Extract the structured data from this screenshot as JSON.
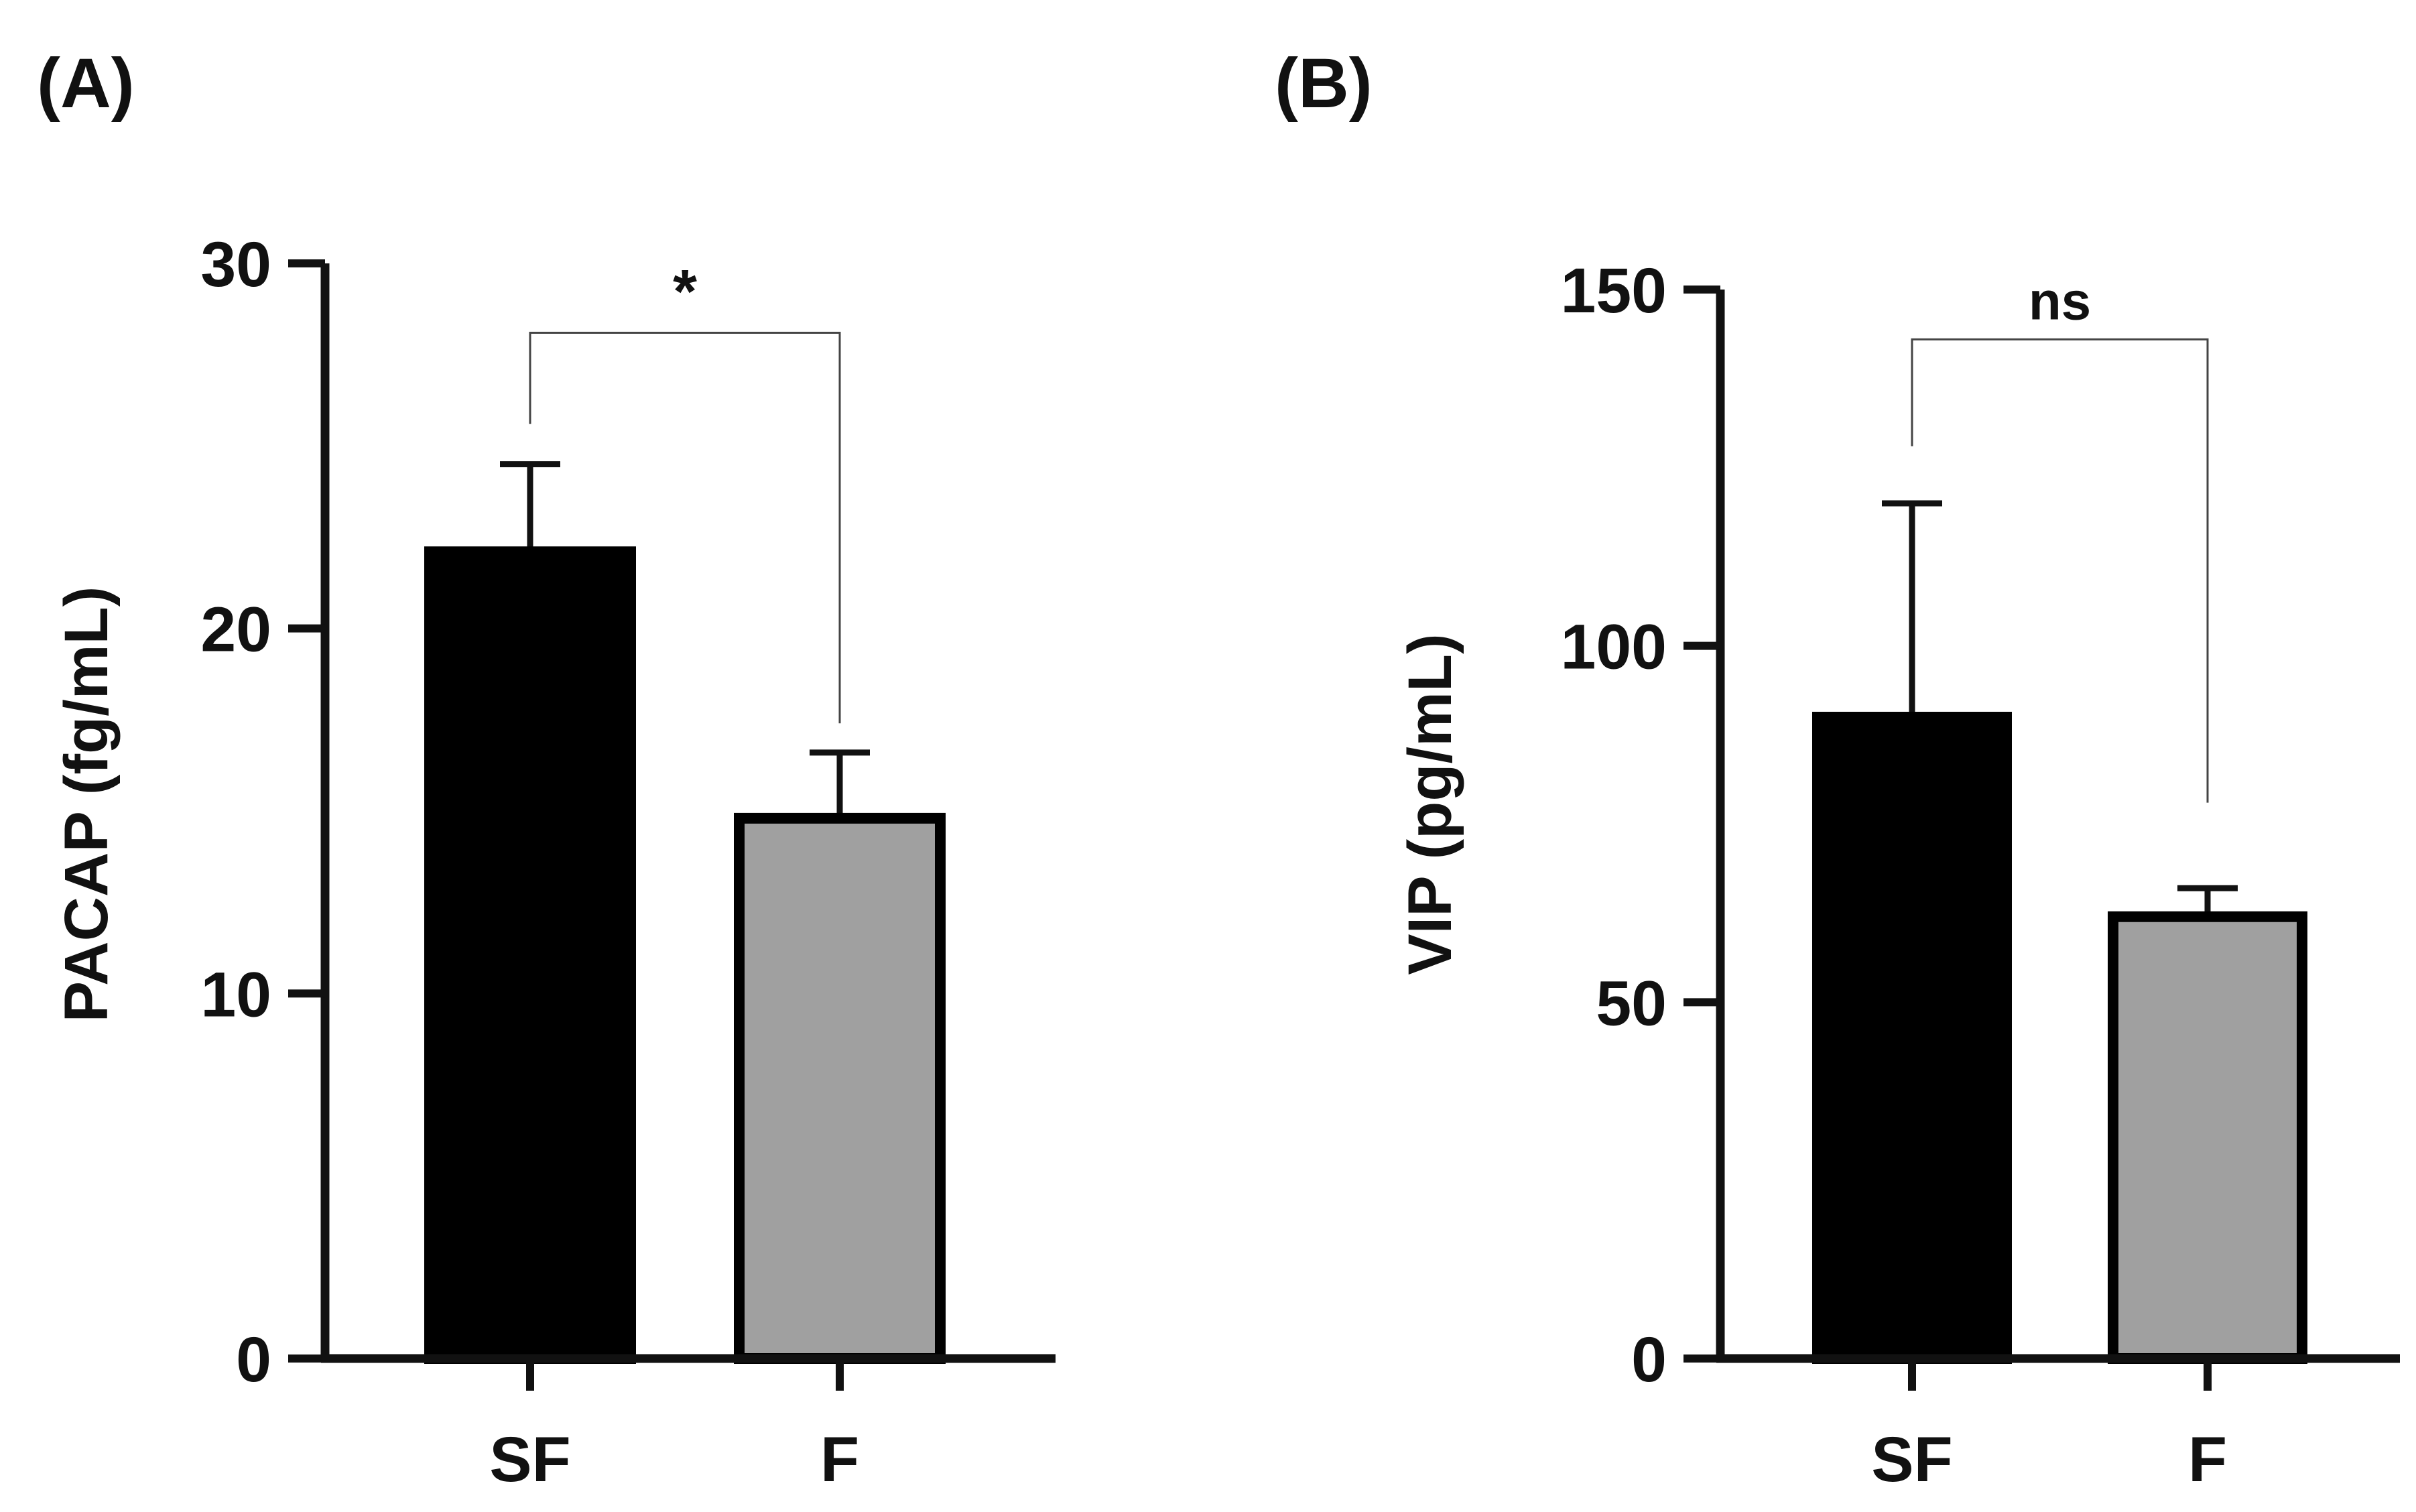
{
  "figure": {
    "background": "#ffffff"
  },
  "chart_data": [
    {
      "type": "bar",
      "panel_label": "(A)",
      "title": "",
      "xlabel": "",
      "ylabel": "PACAP (fg/mL)",
      "ylim": [
        0,
        30
      ],
      "yticks": [
        0,
        10,
        20,
        30
      ],
      "ytick_labels": [
        "0",
        "10",
        "20",
        "30"
      ],
      "categories": [
        "SF",
        "F"
      ],
      "values": [
        22.1,
        14.8
      ],
      "errors": [
        2.4,
        1.8
      ],
      "fill_colors": [
        "#000000",
        "#a0a0a0"
      ],
      "grid": false,
      "significance": {
        "label": "*",
        "left_start": 25.6,
        "right_start": 17.4,
        "top": 28.1
      }
    },
    {
      "type": "bar",
      "panel_label": "(B)",
      "title": "",
      "xlabel": "",
      "ylabel": "VIP (pg/mL)",
      "ylim": [
        0,
        150
      ],
      "yticks": [
        0,
        50,
        100,
        150
      ],
      "ytick_labels": [
        "0",
        "50",
        "100",
        "150"
      ],
      "categories": [
        "SF",
        "F"
      ],
      "values": [
        90,
        62
      ],
      "errors": [
        30,
        4
      ],
      "fill_colors": [
        "#000000",
        "#a0a0a0"
      ],
      "grid": false,
      "significance": {
        "label": "ns",
        "left_start": 128,
        "right_start": 78,
        "top": 143
      }
    }
  ]
}
